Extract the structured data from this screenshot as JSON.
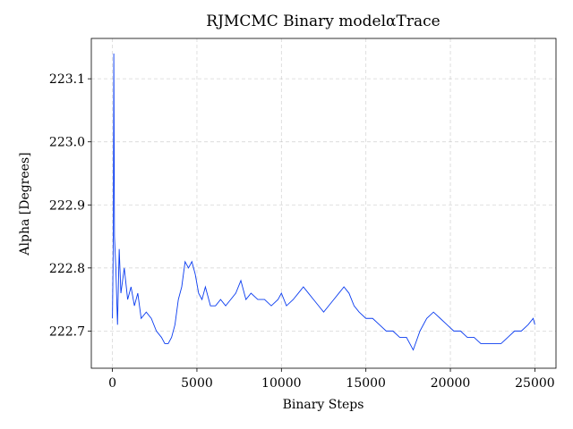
{
  "chart_data": {
    "type": "line",
    "title": "RJMCMC Binary modelαTrace",
    "xlabel": "Binary Steps",
    "ylabel": "Alpha [Degrees]",
    "x": [
      0,
      50,
      80,
      120,
      200,
      300,
      400,
      500,
      700,
      900,
      1100,
      1300,
      1500,
      1700,
      2000,
      2300,
      2600,
      2900,
      3100,
      3300,
      3500,
      3700,
      3900,
      4100,
      4300,
      4500,
      4700,
      4900,
      5100,
      5300,
      5500,
      5800,
      6100,
      6400,
      6700,
      7000,
      7300,
      7600,
      7900,
      8200,
      8600,
      9000,
      9400,
      9800,
      10000,
      10300,
      10700,
      11000,
      11300,
      11600,
      11900,
      12200,
      12500,
      12800,
      13100,
      13400,
      13700,
      14000,
      14300,
      14600,
      15000,
      15400,
      15800,
      16200,
      16600,
      17000,
      17400,
      17800,
      18200,
      18600,
      19000,
      19400,
      19800,
      20200,
      20600,
      21000,
      21400,
      21800,
      22200,
      22600,
      23000,
      23400,
      23800,
      24200,
      24600,
      24900,
      25000
    ],
    "series": [
      {
        "name": "alpha",
        "color": "#0a3cf0",
        "values": [
          222.72,
          222.84,
          223.14,
          222.85,
          222.8,
          222.71,
          222.83,
          222.76,
          222.8,
          222.75,
          222.77,
          222.74,
          222.76,
          222.72,
          222.73,
          222.72,
          222.7,
          222.69,
          222.68,
          222.68,
          222.69,
          222.71,
          222.75,
          222.77,
          222.81,
          222.8,
          222.81,
          222.79,
          222.76,
          222.75,
          222.77,
          222.74,
          222.74,
          222.75,
          222.74,
          222.75,
          222.76,
          222.78,
          222.75,
          222.76,
          222.75,
          222.75,
          222.74,
          222.75,
          222.76,
          222.74,
          222.75,
          222.76,
          222.77,
          222.76,
          222.75,
          222.74,
          222.73,
          222.74,
          222.75,
          222.76,
          222.77,
          222.76,
          222.74,
          222.73,
          222.72,
          222.72,
          222.71,
          222.7,
          222.7,
          222.69,
          222.69,
          222.67,
          222.7,
          222.72,
          222.73,
          222.72,
          222.71,
          222.7,
          222.7,
          222.69,
          222.69,
          222.68,
          222.68,
          222.68,
          222.68,
          222.69,
          222.7,
          222.7,
          222.71,
          222.72,
          222.71
        ]
      }
    ],
    "xlim": [
      -1250,
      26250
    ],
    "ylim": [
      222.641,
      223.164
    ],
    "xticks": [
      0,
      5000,
      10000,
      15000,
      20000,
      25000
    ],
    "yticks": [
      222.7,
      222.8,
      222.9,
      {
        "value": 223.0,
        "label": "223.0"
      },
      223.1
    ],
    "grid": true
  }
}
